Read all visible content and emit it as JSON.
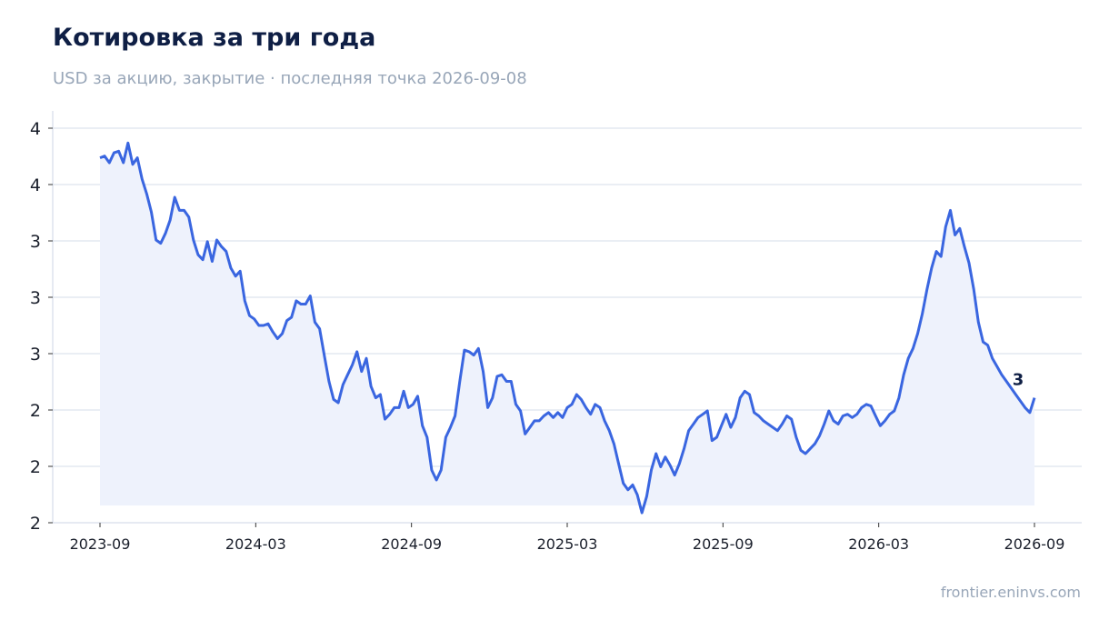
{
  "title": "Котировка за три года",
  "subtitle": "USD за акцию, закрытие · последняя точка 2026-09-08",
  "source": "frontier.eninvs.com",
  "colors": {
    "line": "#3a66e0",
    "area": "#edf1fc",
    "grid": "#dde3ee",
    "title": "#0f1f45",
    "muted": "#98a6b8"
  },
  "chart_data": {
    "type": "area",
    "x_tick_labels": [
      "2023-09",
      "2024-03",
      "2024-09",
      "2025-03",
      "2025-09",
      "2026-03",
      "2026-09"
    ],
    "y_tick_labels": [
      "2",
      "2",
      "2",
      "3",
      "3",
      "3",
      "4",
      "4"
    ],
    "ylim": [
      1.8,
      4.2
    ],
    "grid": "horizontal",
    "end_label": "3",
    "series": [
      {
        "values": [
          [
            0,
            4.02
          ],
          [
            0.5,
            4.03
          ],
          [
            1,
            3.99
          ],
          [
            1.5,
            4.05
          ],
          [
            2,
            4.06
          ],
          [
            2.5,
            3.99
          ],
          [
            3,
            4.11
          ],
          [
            3.5,
            3.98
          ],
          [
            4,
            4.02
          ],
          [
            4.5,
            3.89
          ],
          [
            5,
            3.8
          ],
          [
            5.5,
            3.69
          ],
          [
            6,
            3.52
          ],
          [
            6.5,
            3.5
          ],
          [
            7,
            3.56
          ],
          [
            7.5,
            3.64
          ],
          [
            8,
            3.78
          ],
          [
            8.5,
            3.7
          ],
          [
            9,
            3.7
          ],
          [
            9.5,
            3.66
          ],
          [
            10,
            3.52
          ],
          [
            10.5,
            3.43
          ],
          [
            11,
            3.4
          ],
          [
            11.5,
            3.51
          ],
          [
            12,
            3.39
          ],
          [
            12.5,
            3.52
          ],
          [
            13,
            3.48
          ],
          [
            13.5,
            3.45
          ],
          [
            14,
            3.35
          ],
          [
            14.5,
            3.3
          ],
          [
            15,
            3.33
          ],
          [
            15.5,
            3.15
          ],
          [
            16,
            3.06
          ],
          [
            16.5,
            3.04
          ],
          [
            17,
            3.0
          ],
          [
            17.5,
            3.0
          ],
          [
            18,
            3.01
          ],
          [
            18.5,
            2.96
          ],
          [
            19,
            2.92
          ],
          [
            19.5,
            2.95
          ],
          [
            20,
            3.03
          ],
          [
            20.5,
            3.05
          ],
          [
            21,
            3.15
          ],
          [
            21.5,
            3.13
          ],
          [
            22,
            3.13
          ],
          [
            22.5,
            3.18
          ],
          [
            23,
            3.02
          ],
          [
            23.5,
            2.98
          ],
          [
            24,
            2.82
          ],
          [
            24.5,
            2.66
          ],
          [
            25,
            2.55
          ],
          [
            25.5,
            2.53
          ],
          [
            26,
            2.64
          ],
          [
            26.5,
            2.7
          ],
          [
            27,
            2.76
          ],
          [
            27.5,
            2.84
          ],
          [
            28,
            2.72
          ],
          [
            28.5,
            2.8
          ],
          [
            29,
            2.63
          ],
          [
            29.5,
            2.56
          ],
          [
            30,
            2.58
          ],
          [
            30.5,
            2.43
          ],
          [
            31,
            2.46
          ],
          [
            31.5,
            2.5
          ],
          [
            32,
            2.5
          ],
          [
            32.5,
            2.6
          ],
          [
            33,
            2.5
          ],
          [
            33.5,
            2.52
          ],
          [
            34,
            2.57
          ],
          [
            34.5,
            2.39
          ],
          [
            35,
            2.32
          ],
          [
            35.5,
            2.12
          ],
          [
            36,
            2.06
          ],
          [
            36.5,
            2.12
          ],
          [
            37,
            2.32
          ],
          [
            37.5,
            2.38
          ],
          [
            38,
            2.45
          ],
          [
            38.5,
            2.66
          ],
          [
            39,
            2.85
          ],
          [
            39.5,
            2.84
          ],
          [
            40,
            2.82
          ],
          [
            40.5,
            2.86
          ],
          [
            41,
            2.72
          ],
          [
            41.5,
            2.5
          ],
          [
            42,
            2.56
          ],
          [
            42.5,
            2.69
          ],
          [
            43,
            2.7
          ],
          [
            43.5,
            2.66
          ],
          [
            44,
            2.66
          ],
          [
            44.5,
            2.52
          ],
          [
            45,
            2.48
          ],
          [
            45.5,
            2.34
          ],
          [
            46,
            2.38
          ],
          [
            46.5,
            2.42
          ],
          [
            47,
            2.42
          ],
          [
            47.5,
            2.45
          ],
          [
            48,
            2.47
          ],
          [
            48.5,
            2.44
          ],
          [
            49,
            2.47
          ],
          [
            49.5,
            2.44
          ],
          [
            50,
            2.5
          ],
          [
            50.5,
            2.52
          ],
          [
            51,
            2.58
          ],
          [
            51.5,
            2.55
          ],
          [
            52,
            2.5
          ],
          [
            52.5,
            2.46
          ],
          [
            53,
            2.52
          ],
          [
            53.5,
            2.5
          ],
          [
            54,
            2.42
          ],
          [
            54.5,
            2.36
          ],
          [
            55,
            2.28
          ],
          [
            55.5,
            2.16
          ],
          [
            56,
            2.04
          ],
          [
            56.5,
            2.0
          ],
          [
            57,
            2.03
          ],
          [
            57.5,
            1.97
          ],
          [
            58,
            1.86
          ],
          [
            58.5,
            1.96
          ],
          [
            59,
            2.12
          ],
          [
            59.5,
            2.22
          ],
          [
            60,
            2.14
          ],
          [
            60.5,
            2.2
          ],
          [
            61,
            2.15
          ],
          [
            61.5,
            2.09
          ],
          [
            62,
            2.16
          ],
          [
            62.5,
            2.25
          ],
          [
            63,
            2.36
          ],
          [
            63.5,
            2.4
          ],
          [
            64,
            2.44
          ],
          [
            64.5,
            2.46
          ],
          [
            65,
            2.48
          ],
          [
            65.5,
            2.3
          ],
          [
            66,
            2.32
          ],
          [
            66.5,
            2.39
          ],
          [
            67,
            2.46
          ],
          [
            67.5,
            2.38
          ],
          [
            68,
            2.44
          ],
          [
            68.5,
            2.56
          ],
          [
            69,
            2.6
          ],
          [
            69.5,
            2.58
          ],
          [
            70,
            2.47
          ],
          [
            70.5,
            2.45
          ],
          [
            71,
            2.42
          ],
          [
            71.5,
            2.4
          ],
          [
            72,
            2.38
          ],
          [
            72.5,
            2.36
          ],
          [
            73,
            2.4
          ],
          [
            73.5,
            2.45
          ],
          [
            74,
            2.43
          ],
          [
            74.5,
            2.32
          ],
          [
            75,
            2.24
          ],
          [
            75.5,
            2.22
          ],
          [
            76,
            2.25
          ],
          [
            76.5,
            2.28
          ],
          [
            77,
            2.33
          ],
          [
            77.5,
            2.4
          ],
          [
            78,
            2.48
          ],
          [
            78.5,
            2.42
          ],
          [
            79,
            2.4
          ],
          [
            79.5,
            2.45
          ],
          [
            80,
            2.46
          ],
          [
            80.5,
            2.44
          ],
          [
            81,
            2.46
          ],
          [
            81.5,
            2.5
          ],
          [
            82,
            2.52
          ],
          [
            82.5,
            2.51
          ],
          [
            83,
            2.45
          ],
          [
            83.5,
            2.39
          ],
          [
            84,
            2.42
          ],
          [
            84.5,
            2.46
          ],
          [
            85,
            2.48
          ],
          [
            85.5,
            2.56
          ],
          [
            86,
            2.7
          ],
          [
            86.5,
            2.8
          ],
          [
            87,
            2.86
          ],
          [
            87.5,
            2.95
          ],
          [
            88,
            3.07
          ],
          [
            88.5,
            3.22
          ],
          [
            89,
            3.35
          ],
          [
            89.5,
            3.45
          ],
          [
            90,
            3.42
          ],
          [
            90.5,
            3.6
          ],
          [
            91,
            3.7
          ],
          [
            91.5,
            3.55
          ],
          [
            92,
            3.59
          ],
          [
            92.5,
            3.48
          ],
          [
            93,
            3.38
          ],
          [
            93.5,
            3.22
          ],
          [
            94,
            3.02
          ],
          [
            94.5,
            2.9
          ],
          [
            95,
            2.88
          ],
          [
            95.5,
            2.8
          ],
          [
            96,
            2.75
          ],
          [
            96.5,
            2.7
          ],
          [
            97,
            2.66
          ],
          [
            97.5,
            2.62
          ],
          [
            98,
            2.58
          ],
          [
            98.5,
            2.54
          ],
          [
            99,
            2.5
          ],
          [
            99.5,
            2.47
          ],
          [
            100,
            2.56
          ]
        ]
      }
    ]
  }
}
